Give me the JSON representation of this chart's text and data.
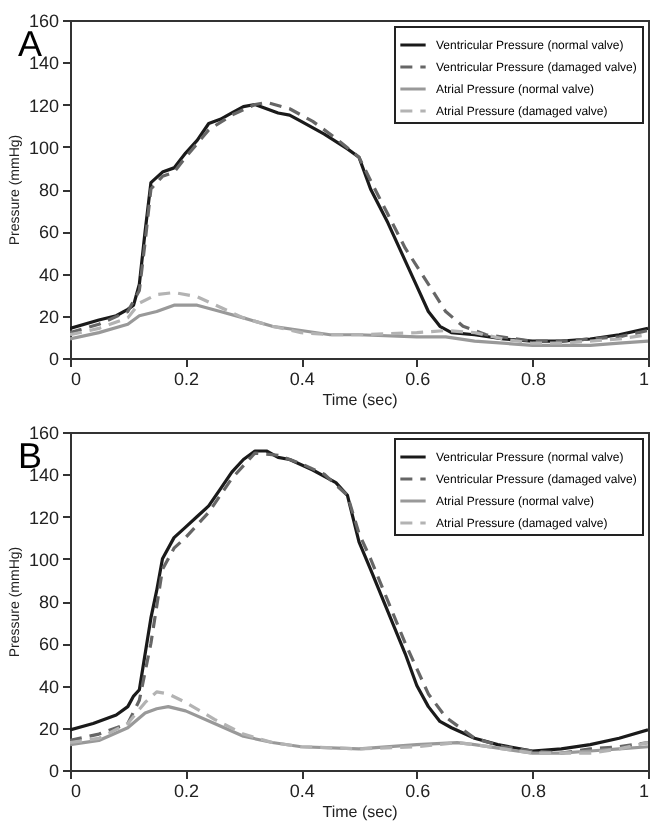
{
  "chart_data": [
    {
      "type": "line",
      "title": "A",
      "xlabel": "Time (sec)",
      "ylabel": "Pressure (mmHg)",
      "xlim": [
        0,
        1
      ],
      "xticks": [
        0,
        0.2,
        0.4,
        0.6,
        0.8,
        1
      ],
      "ylim": [
        0,
        160
      ],
      "yticks": [
        0,
        20,
        40,
        60,
        80,
        100,
        120,
        140,
        160
      ],
      "legend": "top right",
      "grid": false,
      "marker": "none",
      "series": [
        {
          "name": "Ventricular Pressure (normal valve)",
          "color": "#1a1a1a",
          "line_style": "solid",
          "x": [
            0,
            0.05,
            0.08,
            0.1,
            0.11,
            0.12,
            0.13,
            0.14,
            0.16,
            0.18,
            0.2,
            0.22,
            0.24,
            0.26,
            0.28,
            0.3,
            0.32,
            0.34,
            0.36,
            0.38,
            0.4,
            0.44,
            0.48,
            0.5,
            0.52,
            0.55,
            0.58,
            0.6,
            0.62,
            0.64,
            0.66,
            0.7,
            0.75,
            0.8,
            0.85,
            0.9,
            0.95,
            1
          ],
          "values": [
            14,
            18,
            20,
            23,
            25,
            35,
            60,
            83,
            88,
            90,
            97,
            103,
            111,
            113,
            116,
            119,
            120,
            118,
            116,
            115,
            112,
            106,
            99,
            95,
            80,
            64,
            46,
            34,
            22,
            15,
            12,
            11,
            9,
            8,
            8,
            9,
            11,
            14
          ]
        },
        {
          "name": "Ventricular Pressure (damaged valve)",
          "color": "#666666",
          "line_style": "dashed",
          "x": [
            0,
            0.05,
            0.1,
            0.12,
            0.13,
            0.14,
            0.16,
            0.18,
            0.2,
            0.24,
            0.28,
            0.32,
            0.34,
            0.38,
            0.42,
            0.46,
            0.5,
            0.52,
            0.55,
            0.58,
            0.62,
            0.65,
            0.68,
            0.72,
            0.8,
            0.85,
            0.9,
            0.95,
            1
          ],
          "values": [
            12,
            16,
            22,
            32,
            55,
            80,
            86,
            88,
            95,
            108,
            115,
            120,
            121,
            118,
            112,
            104,
            95,
            84,
            68,
            52,
            35,
            22,
            15,
            11,
            8,
            8,
            9,
            10,
            13
          ]
        },
        {
          "name": "Atrial Pressure (normal valve)",
          "color": "#999999",
          "line_style": "solid",
          "x": [
            0,
            0.05,
            0.1,
            0.12,
            0.15,
            0.18,
            0.22,
            0.26,
            0.3,
            0.35,
            0.4,
            0.45,
            0.5,
            0.6,
            0.65,
            0.7,
            0.8,
            0.85,
            0.9,
            0.95,
            1
          ],
          "values": [
            9,
            12,
            16,
            20,
            22,
            25,
            25,
            22,
            19,
            15,
            13,
            11,
            11,
            10,
            10,
            8,
            6,
            6,
            6,
            7,
            8
          ]
        },
        {
          "name": "Atrial Pressure (damaged valve)",
          "color": "#b3b3b3",
          "line_style": "dashed",
          "x": [
            0,
            0.05,
            0.1,
            0.12,
            0.15,
            0.18,
            0.22,
            0.26,
            0.3,
            0.35,
            0.4,
            0.45,
            0.5,
            0.6,
            0.65,
            0.7,
            0.75,
            0.8,
            0.85,
            0.9,
            0.95,
            1
          ],
          "values": [
            11,
            14,
            19,
            26,
            30,
            31,
            29,
            24,
            19,
            15,
            12,
            11,
            11,
            12,
            13,
            12,
            9,
            7,
            7,
            8,
            9,
            11
          ]
        }
      ]
    },
    {
      "type": "line",
      "title": "B",
      "xlabel": "Time (sec)",
      "ylabel": "Pressure (mmHg)",
      "xlim": [
        0,
        1
      ],
      "xticks": [
        0,
        0.2,
        0.4,
        0.6,
        0.8,
        1
      ],
      "ylim": [
        0,
        160
      ],
      "yticks": [
        0,
        20,
        40,
        60,
        80,
        100,
        120,
        140,
        160
      ],
      "legend": "top right",
      "grid": false,
      "marker": "none",
      "series": [
        {
          "name": "Ventricular Pressure (normal valve)",
          "color": "#1a1a1a",
          "line_style": "solid",
          "x": [
            0,
            0.04,
            0.08,
            0.1,
            0.11,
            0.12,
            0.13,
            0.14,
            0.15,
            0.16,
            0.18,
            0.2,
            0.22,
            0.24,
            0.26,
            0.28,
            0.3,
            0.32,
            0.34,
            0.36,
            0.38,
            0.42,
            0.46,
            0.48,
            0.5,
            0.52,
            0.55,
            0.58,
            0.6,
            0.62,
            0.64,
            0.66,
            0.7,
            0.74,
            0.8,
            0.85,
            0.9,
            0.95,
            1
          ],
          "values": [
            19,
            22,
            26,
            30,
            35,
            38,
            55,
            72,
            85,
            100,
            110,
            115,
            120,
            125,
            133,
            141,
            147,
            151,
            151,
            148,
            147,
            142,
            136,
            130,
            108,
            95,
            75,
            55,
            40,
            30,
            23,
            20,
            15,
            12,
            9,
            10,
            12,
            15,
            19
          ]
        },
        {
          "name": "Ventricular Pressure (damaged valve)",
          "color": "#666666",
          "line_style": "dashed",
          "x": [
            0,
            0.05,
            0.1,
            0.12,
            0.14,
            0.16,
            0.18,
            0.2,
            0.24,
            0.28,
            0.32,
            0.36,
            0.4,
            0.44,
            0.48,
            0.5,
            0.52,
            0.55,
            0.58,
            0.6,
            0.62,
            0.65,
            0.7,
            0.75,
            0.8,
            0.85,
            0.9,
            0.95,
            1
          ],
          "values": [
            14,
            17,
            22,
            33,
            60,
            95,
            105,
            110,
            122,
            138,
            150,
            149,
            145,
            140,
            130,
            112,
            100,
            80,
            60,
            48,
            36,
            25,
            15,
            11,
            9,
            8,
            10,
            11,
            13
          ]
        },
        {
          "name": "Atrial Pressure (normal valve)",
          "color": "#999999",
          "line_style": "solid",
          "x": [
            0,
            0.05,
            0.1,
            0.13,
            0.15,
            0.17,
            0.2,
            0.25,
            0.3,
            0.35,
            0.4,
            0.5,
            0.6,
            0.67,
            0.7,
            0.75,
            0.8,
            0.85,
            0.9,
            0.95,
            1
          ],
          "values": [
            12,
            14,
            20,
            27,
            29,
            30,
            28,
            22,
            16,
            13,
            11,
            10,
            12,
            13,
            12,
            10,
            8,
            8,
            9,
            10,
            11
          ]
        },
        {
          "name": "Atrial Pressure (damaged valve)",
          "color": "#b3b3b3",
          "line_style": "dashed",
          "x": [
            0,
            0.05,
            0.1,
            0.13,
            0.15,
            0.17,
            0.2,
            0.25,
            0.3,
            0.35,
            0.4,
            0.5,
            0.6,
            0.67,
            0.7,
            0.75,
            0.8,
            0.85,
            0.9,
            0.95,
            1
          ],
          "values": [
            13,
            15,
            22,
            32,
            37,
            36,
            32,
            24,
            17,
            13,
            11,
            10,
            11,
            13,
            12,
            10,
            8,
            8,
            8,
            10,
            13
          ]
        }
      ]
    }
  ]
}
